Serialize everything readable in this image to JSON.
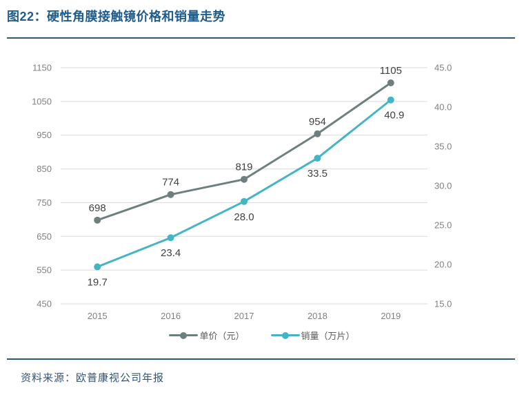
{
  "header": {
    "title": "图22：硬性角膜接触镜价格和销量走势"
  },
  "footer": {
    "source": "资料来源：欧普康视公司年报"
  },
  "colors": {
    "title_blue": "#1f5c8a",
    "rule_blue": "#2e5875",
    "gridline": "#d9d9d9",
    "axis_label": "#808080",
    "data_label": "#404040",
    "price_series": "#6e7f80",
    "sales_series": "#44b5c4",
    "legend_text": "#595959",
    "source_text": "#2f5480"
  },
  "chart_data": {
    "type": "line",
    "title": "硬性角膜接触镜价格和销量走势",
    "categories": [
      "2015",
      "2016",
      "2017",
      "2018",
      "2019"
    ],
    "series": [
      {
        "name": "单价（元）",
        "axis": "left",
        "color": "#6e7f80",
        "values": [
          698,
          774,
          819,
          954,
          1105
        ],
        "labels": [
          "698",
          "774",
          "819",
          "954",
          "1105"
        ],
        "label_position": "above"
      },
      {
        "name": "销量（万片）",
        "axis": "right",
        "color": "#44b5c4",
        "values": [
          19.7,
          23.4,
          28.0,
          33.5,
          40.9
        ],
        "labels": [
          "19.7",
          "23.4",
          "28.0",
          "33.5",
          "40.9"
        ],
        "label_position": "below"
      }
    ],
    "left_axis": {
      "min": 450,
      "max": 1150,
      "step": 100,
      "ticks": [
        "1150",
        "1050",
        "950",
        "850",
        "750",
        "650",
        "550",
        "450"
      ]
    },
    "right_axis": {
      "min": 15,
      "max": 45,
      "step": 5,
      "ticks": [
        "45.0",
        "40.0",
        "35.0",
        "30.0",
        "25.0",
        "20.0",
        "15.0"
      ]
    },
    "grid": true,
    "legend_position": "bottom"
  }
}
